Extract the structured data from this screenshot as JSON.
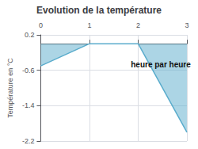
{
  "chart_data": {
    "type": "area",
    "title": "Evolution de la température",
    "ylabel": "Température en °C",
    "x": [
      0,
      1,
      2,
      3
    ],
    "values": [
      -0.5,
      0.0,
      0.0,
      -2.0
    ],
    "color": "#5aaccc",
    "xlim": [
      0,
      3
    ],
    "ylim": [
      -2.2,
      0.2
    ],
    "xticks": [
      0,
      1,
      2,
      3
    ],
    "yticks": [
      0.2,
      -0.6,
      -1.4,
      -2.2
    ],
    "grid": true,
    "annotations": [
      {
        "text": "heure par heure",
        "x": 1.85,
        "y": -0.48
      }
    ]
  }
}
